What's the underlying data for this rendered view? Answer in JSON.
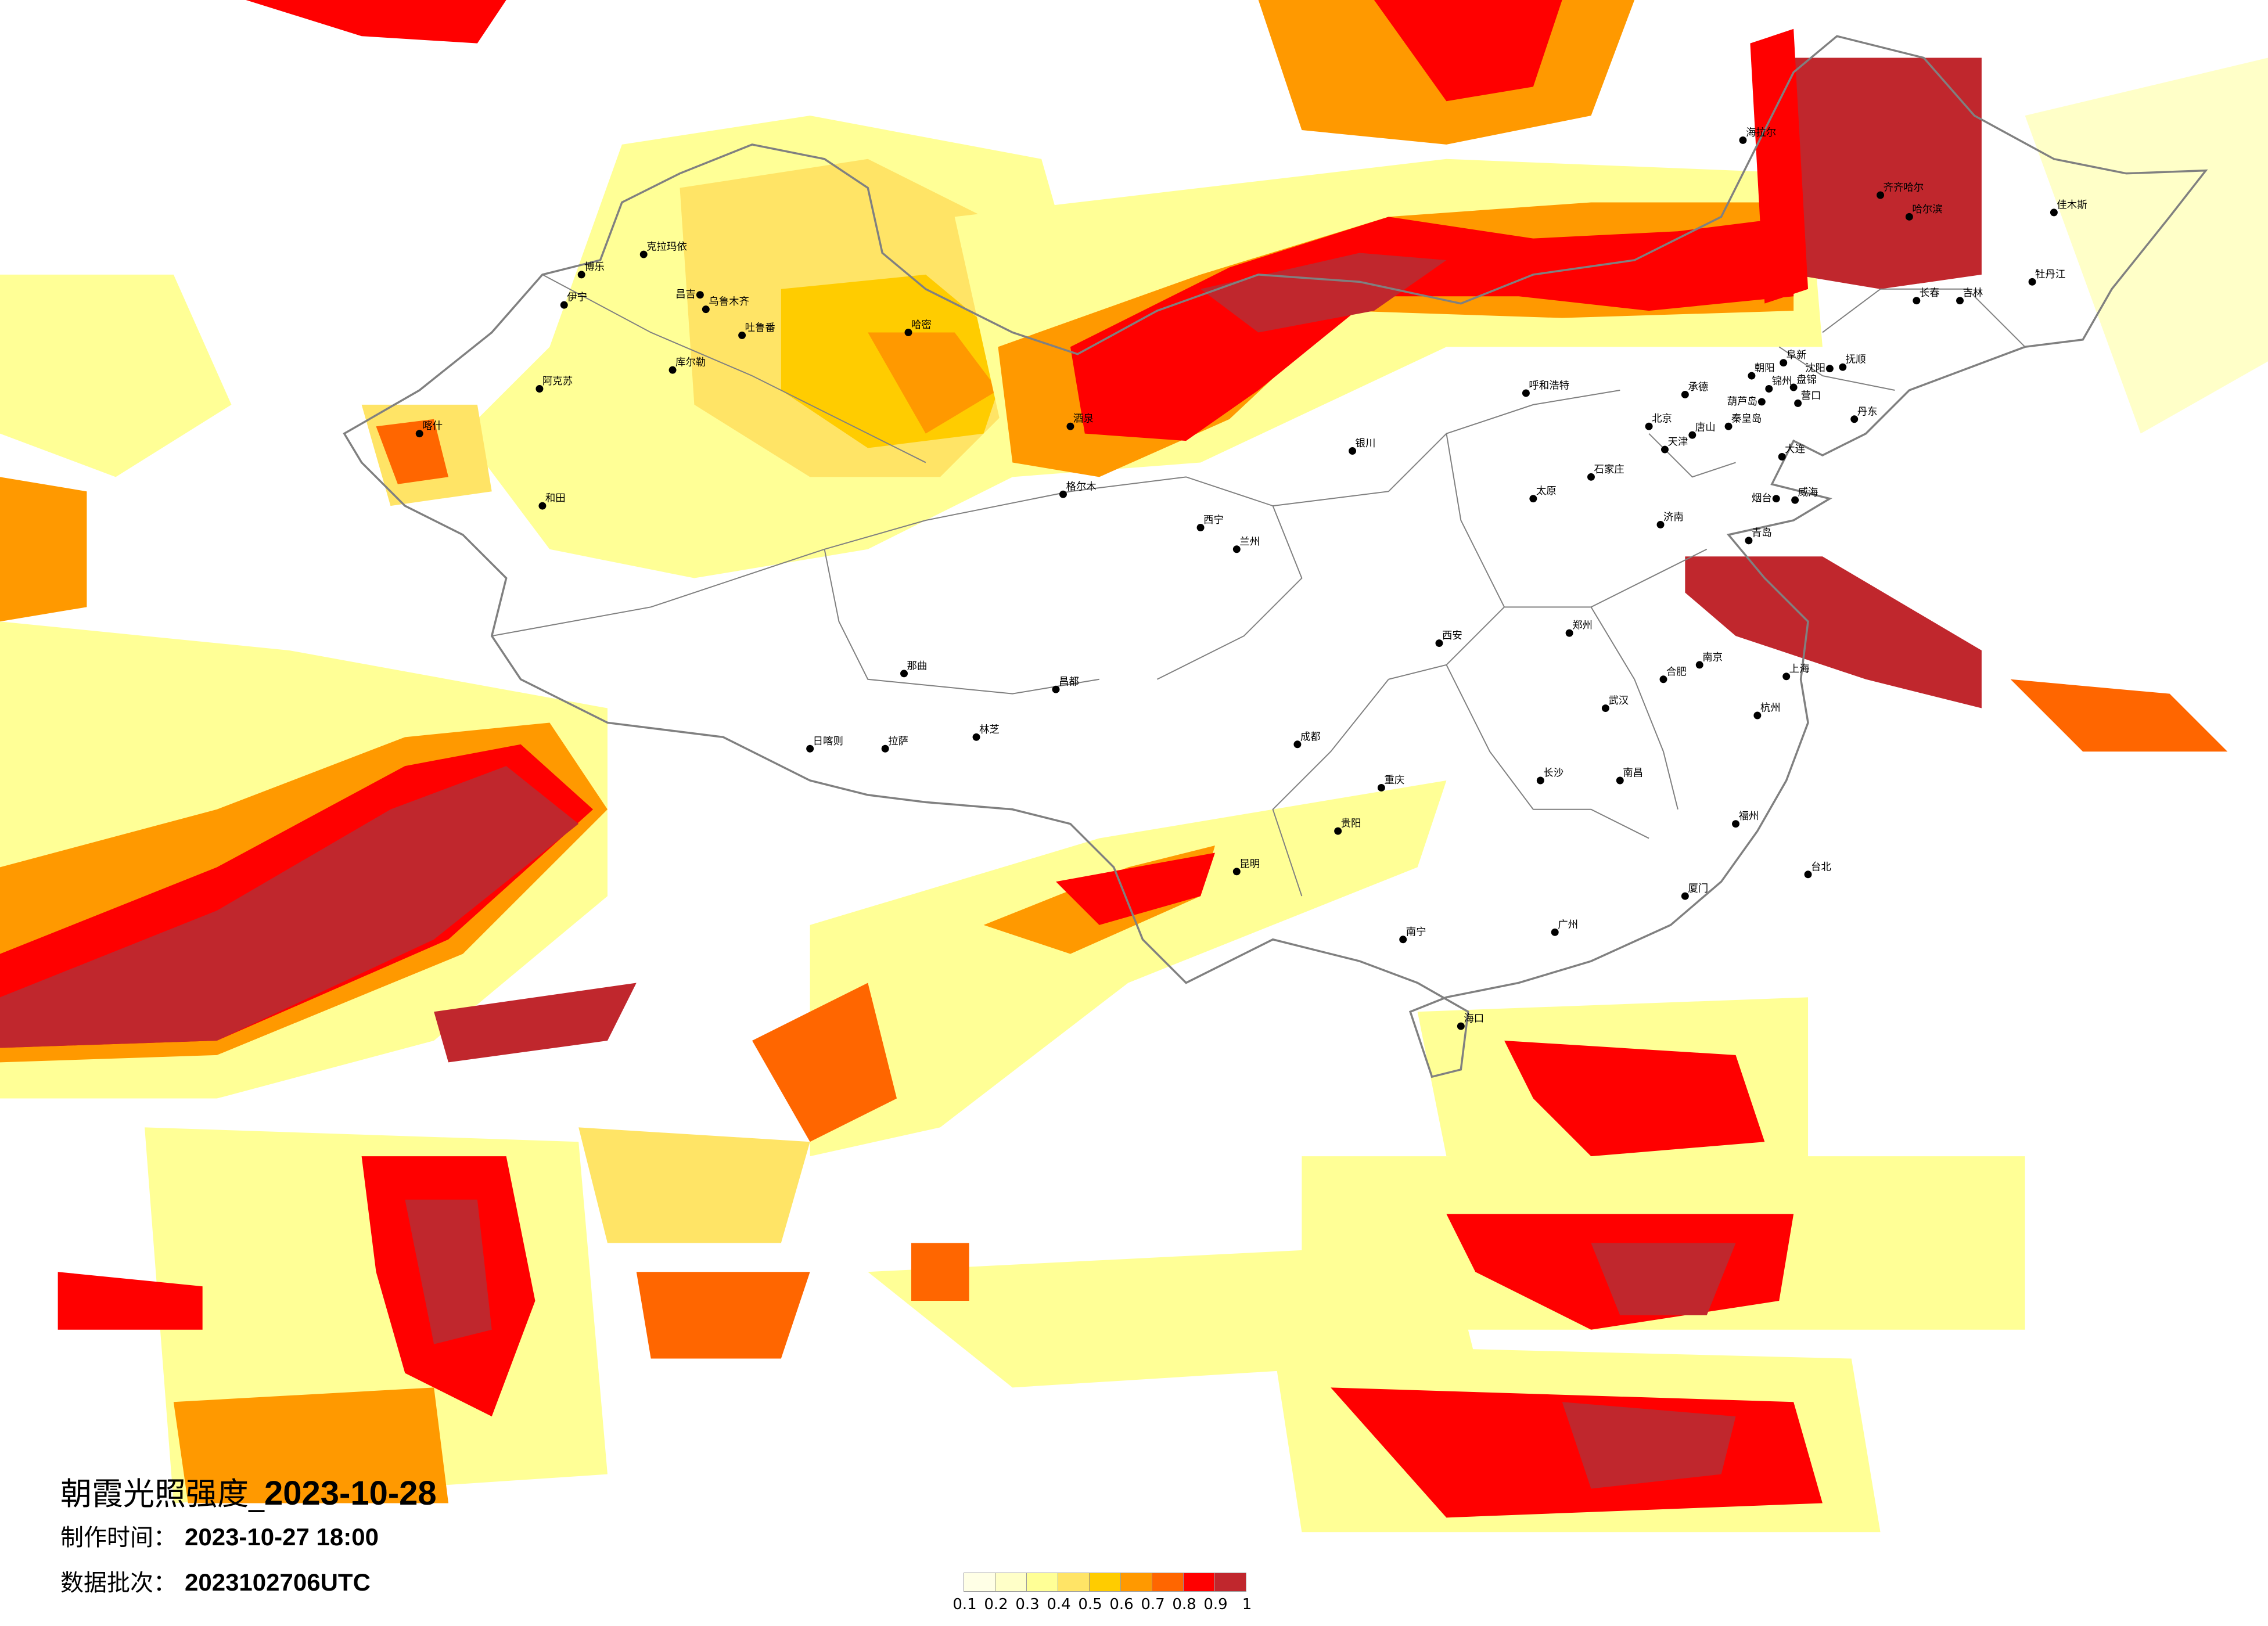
{
  "title": {
    "prefix": "朝霞光照强度_",
    "date": "2023-10-28"
  },
  "production_time": {
    "label": "制作时间：",
    "value": "2023-10-27 18:00"
  },
  "data_batch": {
    "label": "数据批次：",
    "value": "2023102706UTC"
  },
  "legend": {
    "colors": [
      "#FFFFE6",
      "#FFFFC8",
      "#FFFF96",
      "#FFE466",
      "#FFCC00",
      "#FF9900",
      "#FF6600",
      "#FF0000",
      "#C0272D"
    ],
    "labels": [
      "0.1",
      "0.2",
      "0.3",
      "0.4",
      "0.5",
      "0.6",
      "0.7",
      "0.8",
      "0.9",
      "1"
    ]
  },
  "border_color": "#808080",
  "cities": [
    "克拉玛依",
    "博乐",
    "伊宁",
    "昌吉",
    "乌鲁木齐",
    "吐鲁番",
    "库尔勒",
    "阿克苏",
    "和田",
    "喀什",
    "哈密",
    "拉萨",
    "日喀则",
    "林芝",
    "昌都",
    "那曲",
    "格尔木",
    "酒泉",
    "西宁",
    "兰州",
    "银川",
    "呼和浩特",
    "成都",
    "重庆",
    "昆明",
    "贵阳",
    "南宁",
    "海口",
    "广州",
    "长沙",
    "武汉",
    "郑州",
    "西安",
    "太原",
    "北京",
    "天津",
    "石家庄",
    "济南",
    "青岛",
    "烟台",
    "威海",
    "大连",
    "丹东",
    "沈阳",
    "抚顺",
    "锦州",
    "葫芦岛",
    "营口",
    "盘锦",
    "承德",
    "唐山",
    "秦皇岛",
    "朝阳",
    "阜新",
    "南京",
    "上海",
    "杭州",
    "合肥",
    "南昌",
    "福州",
    "厦门",
    "台北",
    "哈尔滨",
    "长春",
    "吉林",
    "齐齐哈尔",
    "海拉尔",
    "佳木斯",
    "牡丹江"
  ]
}
